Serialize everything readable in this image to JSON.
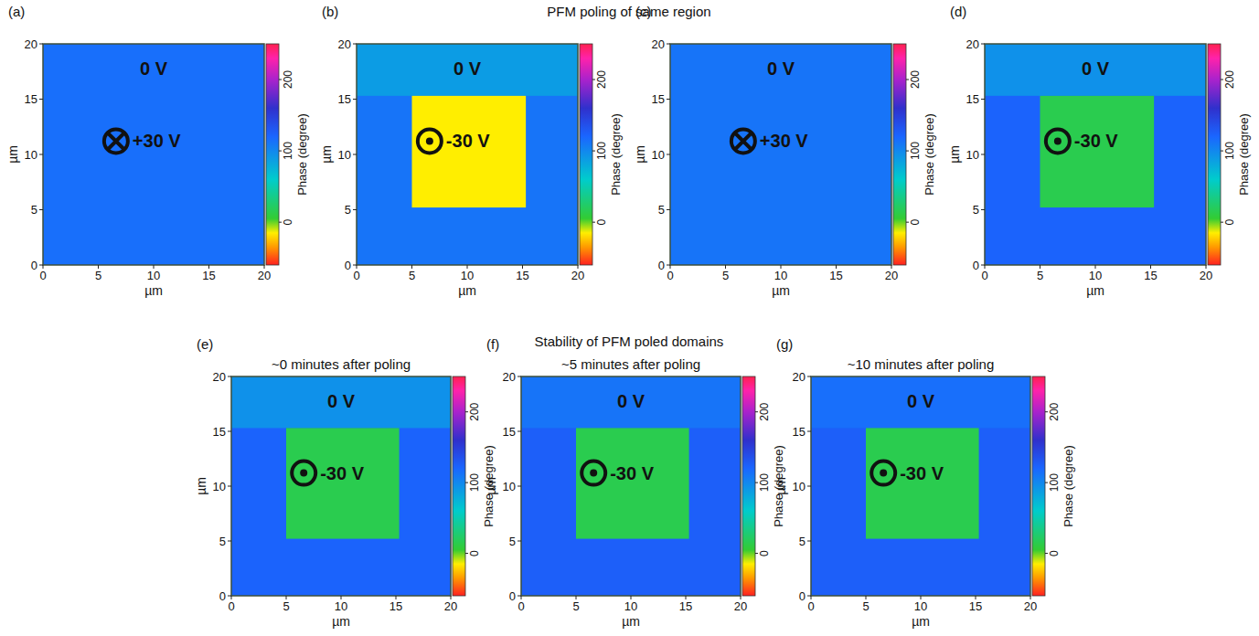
{
  "titles": [
    "PFM poling of same region",
    "Stability of PFM poled domains"
  ],
  "chart_data": [
    {
      "type": "heatmap",
      "panel_label": "(a)",
      "xlabel": "µm",
      "ylabel": "µm",
      "xlim": [
        0,
        20
      ],
      "ylim": [
        0,
        20
      ],
      "xticks": [
        0,
        5,
        10,
        15,
        20
      ],
      "yticks": [
        0,
        5,
        10,
        15,
        20
      ],
      "regions": [
        {
          "x": [
            0,
            20
          ],
          "y": [
            0,
            20
          ],
          "phase": 115
        }
      ],
      "annotations": [
        {
          "text": "0 V"
        },
        {
          "text": "+30 V",
          "marker": "cross"
        }
      ],
      "colorbar": {
        "label": "Phase (degree)",
        "range": [
          -60,
          250
        ],
        "ticks": [
          0,
          100,
          200
        ],
        "colors": [
          {
            "value": -60,
            "color": "#ff2020"
          },
          {
            "value": -35,
            "color": "#ff9900"
          },
          {
            "value": -15,
            "color": "#ffee00"
          },
          {
            "value": 5,
            "color": "#33cc33"
          },
          {
            "value": 60,
            "color": "#00cccc"
          },
          {
            "value": 120,
            "color": "#1a66ff"
          },
          {
            "value": 160,
            "color": "#3030cc"
          },
          {
            "value": 200,
            "color": "#aa22cc"
          },
          {
            "value": 230,
            "color": "#ff22aa"
          },
          {
            "value": 250,
            "color": "#ff2050"
          }
        ]
      }
    },
    {
      "type": "heatmap",
      "panel_label": "(b)",
      "xlabel": "µm",
      "ylabel": "µm",
      "xlim": [
        0,
        20
      ],
      "ylim": [
        0,
        20
      ],
      "xticks": [
        0,
        5,
        10,
        15,
        20
      ],
      "yticks": [
        0,
        5,
        10,
        15,
        20
      ],
      "regions": [
        {
          "x": [
            0,
            20
          ],
          "y": [
            0,
            20
          ],
          "phase": 112
        },
        {
          "x": [
            0,
            20
          ],
          "y": [
            15.3,
            20
          ],
          "phase": 88
        },
        {
          "x": [
            5,
            15.3
          ],
          "y": [
            5.2,
            15.3
          ],
          "phase": -15
        }
      ],
      "annotations": [
        {
          "text": "0 V"
        },
        {
          "text": "-30 V",
          "marker": "dot"
        }
      ],
      "colorbar": {
        "label": "Phase (degree)",
        "range": [
          -60,
          250
        ],
        "ticks": [
          0,
          100,
          200
        ],
        "colors": [
          {
            "value": -60,
            "color": "#ff2020"
          },
          {
            "value": -35,
            "color": "#ff9900"
          },
          {
            "value": -15,
            "color": "#ffee00"
          },
          {
            "value": 5,
            "color": "#33cc33"
          },
          {
            "value": 60,
            "color": "#00cccc"
          },
          {
            "value": 120,
            "color": "#1a66ff"
          },
          {
            "value": 160,
            "color": "#3030cc"
          },
          {
            "value": 200,
            "color": "#aa22cc"
          },
          {
            "value": 230,
            "color": "#ff22aa"
          },
          {
            "value": 250,
            "color": "#ff2050"
          }
        ]
      }
    },
    {
      "type": "heatmap",
      "panel_label": "(c)",
      "xlabel": "µm",
      "ylabel": "µm",
      "xlim": [
        0,
        20
      ],
      "ylim": [
        0,
        20
      ],
      "xticks": [
        0,
        5,
        10,
        15,
        20
      ],
      "yticks": [
        0,
        5,
        10,
        15,
        20
      ],
      "regions": [
        {
          "x": [
            0,
            20
          ],
          "y": [
            0,
            20
          ],
          "phase": 112
        }
      ],
      "annotations": [
        {
          "text": "0 V"
        },
        {
          "text": "+30 V",
          "marker": "cross"
        }
      ],
      "colorbar": {
        "label": "Phase (degree)",
        "range": [
          -60,
          250
        ],
        "ticks": [
          0,
          100,
          200
        ],
        "colors": [
          {
            "value": -60,
            "color": "#ff2020"
          },
          {
            "value": -35,
            "color": "#ff9900"
          },
          {
            "value": -15,
            "color": "#ffee00"
          },
          {
            "value": 5,
            "color": "#33cc33"
          },
          {
            "value": 60,
            "color": "#00cccc"
          },
          {
            "value": 120,
            "color": "#1a66ff"
          },
          {
            "value": 160,
            "color": "#3030cc"
          },
          {
            "value": 200,
            "color": "#aa22cc"
          },
          {
            "value": 230,
            "color": "#ff22aa"
          },
          {
            "value": 250,
            "color": "#ff2050"
          }
        ]
      }
    },
    {
      "type": "heatmap",
      "panel_label": "(d)",
      "xlabel": "µm",
      "ylabel": "µm",
      "xlim": [
        0,
        20
      ],
      "ylim": [
        0,
        20
      ],
      "xticks": [
        0,
        5,
        10,
        15,
        20
      ],
      "yticks": [
        0,
        5,
        10,
        15,
        20
      ],
      "regions": [
        {
          "x": [
            0,
            20
          ],
          "y": [
            0,
            20
          ],
          "phase": 122
        },
        {
          "x": [
            0,
            20
          ],
          "y": [
            15.3,
            20
          ],
          "phase": 95
        },
        {
          "x": [
            5,
            15.3
          ],
          "y": [
            5.2,
            15.3
          ],
          "phase": 15
        }
      ],
      "annotations": [
        {
          "text": "0 V"
        },
        {
          "text": "-30 V",
          "marker": "dot"
        }
      ],
      "colorbar": {
        "label": "Phase (degree)",
        "range": [
          -60,
          250
        ],
        "ticks": [
          0,
          100,
          200
        ],
        "colors": [
          {
            "value": -60,
            "color": "#ff2020"
          },
          {
            "value": -35,
            "color": "#ff9900"
          },
          {
            "value": -15,
            "color": "#ffee00"
          },
          {
            "value": 5,
            "color": "#33cc33"
          },
          {
            "value": 60,
            "color": "#00cccc"
          },
          {
            "value": 120,
            "color": "#1a66ff"
          },
          {
            "value": 160,
            "color": "#3030cc"
          },
          {
            "value": 200,
            "color": "#aa22cc"
          },
          {
            "value": 230,
            "color": "#ff22aa"
          },
          {
            "value": 250,
            "color": "#ff2050"
          }
        ]
      }
    },
    {
      "type": "heatmap",
      "panel_label": "(e)",
      "title": "~0 minutes after poling",
      "xlabel": "µm",
      "ylabel": "µm",
      "xlim": [
        0,
        20
      ],
      "ylim": [
        0,
        20
      ],
      "xticks": [
        0,
        5,
        10,
        15,
        20
      ],
      "yticks": [
        0,
        5,
        10,
        15,
        20
      ],
      "regions": [
        {
          "x": [
            0,
            20
          ],
          "y": [
            0,
            20
          ],
          "phase": 122
        },
        {
          "x": [
            0,
            20
          ],
          "y": [
            15.3,
            20
          ],
          "phase": 95
        },
        {
          "x": [
            5,
            15.3
          ],
          "y": [
            5.2,
            15.3
          ],
          "phase": 15
        }
      ],
      "annotations": [
        {
          "text": "0 V"
        },
        {
          "text": "-30 V",
          "marker": "dot"
        }
      ],
      "colorbar": {
        "label": "Phase (degree)",
        "range": [
          -60,
          250
        ],
        "ticks": [
          0,
          100,
          200
        ],
        "colors": [
          {
            "value": -60,
            "color": "#ff2020"
          },
          {
            "value": -35,
            "color": "#ff9900"
          },
          {
            "value": -15,
            "color": "#ffee00"
          },
          {
            "value": 5,
            "color": "#33cc33"
          },
          {
            "value": 60,
            "color": "#00cccc"
          },
          {
            "value": 120,
            "color": "#1a66ff"
          },
          {
            "value": 160,
            "color": "#3030cc"
          },
          {
            "value": 200,
            "color": "#aa22cc"
          },
          {
            "value": 230,
            "color": "#ff22aa"
          },
          {
            "value": 250,
            "color": "#ff2050"
          }
        ]
      }
    },
    {
      "type": "heatmap",
      "panel_label": "(f)",
      "title": "~5 minutes after poling",
      "xlabel": "µm",
      "ylabel": "µm",
      "xlim": [
        0,
        20
      ],
      "ylim": [
        0,
        20
      ],
      "xticks": [
        0,
        5,
        10,
        15,
        20
      ],
      "yticks": [
        0,
        5,
        10,
        15,
        20
      ],
      "regions": [
        {
          "x": [
            0,
            20
          ],
          "y": [
            0,
            20
          ],
          "phase": 125
        },
        {
          "x": [
            0,
            20
          ],
          "y": [
            15.3,
            20
          ],
          "phase": 112
        },
        {
          "x": [
            5,
            15.3
          ],
          "y": [
            5.2,
            15.3
          ],
          "phase": 15
        }
      ],
      "annotations": [
        {
          "text": "0 V"
        },
        {
          "text": "-30 V",
          "marker": "dot"
        }
      ],
      "colorbar": {
        "label": "Phase (degree)",
        "range": [
          -60,
          250
        ],
        "ticks": [
          0,
          100,
          200
        ],
        "colors": [
          {
            "value": -60,
            "color": "#ff2020"
          },
          {
            "value": -35,
            "color": "#ff9900"
          },
          {
            "value": -15,
            "color": "#ffee00"
          },
          {
            "value": 5,
            "color": "#33cc33"
          },
          {
            "value": 60,
            "color": "#00cccc"
          },
          {
            "value": 120,
            "color": "#1a66ff"
          },
          {
            "value": 160,
            "color": "#3030cc"
          },
          {
            "value": 200,
            "color": "#aa22cc"
          },
          {
            "value": 230,
            "color": "#ff22aa"
          },
          {
            "value": 250,
            "color": "#ff2050"
          }
        ]
      }
    },
    {
      "type": "heatmap",
      "panel_label": "(g)",
      "title": "~10 minutes after poling",
      "xlabel": "µm",
      "ylabel": "µm",
      "xlim": [
        0,
        20
      ],
      "ylim": [
        0,
        20
      ],
      "xticks": [
        0,
        5,
        10,
        15,
        20
      ],
      "yticks": [
        0,
        5,
        10,
        15,
        20
      ],
      "regions": [
        {
          "x": [
            0,
            20
          ],
          "y": [
            0,
            20
          ],
          "phase": 125
        },
        {
          "x": [
            0,
            20
          ],
          "y": [
            15.3,
            20
          ],
          "phase": 115
        },
        {
          "x": [
            5,
            15.3
          ],
          "y": [
            5.2,
            15.3
          ],
          "phase": 15
        }
      ],
      "annotations": [
        {
          "text": "0 V"
        },
        {
          "text": "-30 V",
          "marker": "dot"
        }
      ],
      "colorbar": {
        "label": "Phase (degree)",
        "range": [
          -60,
          250
        ],
        "ticks": [
          0,
          100,
          200
        ],
        "colors": [
          {
            "value": -60,
            "color": "#ff2020"
          },
          {
            "value": -35,
            "color": "#ff9900"
          },
          {
            "value": -15,
            "color": "#ffee00"
          },
          {
            "value": 5,
            "color": "#33cc33"
          },
          {
            "value": 60,
            "color": "#00cccc"
          },
          {
            "value": 120,
            "color": "#1a66ff"
          },
          {
            "value": 160,
            "color": "#3030cc"
          },
          {
            "value": 200,
            "color": "#aa22cc"
          },
          {
            "value": 230,
            "color": "#ff22aa"
          },
          {
            "value": 250,
            "color": "#ff2050"
          }
        ]
      }
    }
  ]
}
